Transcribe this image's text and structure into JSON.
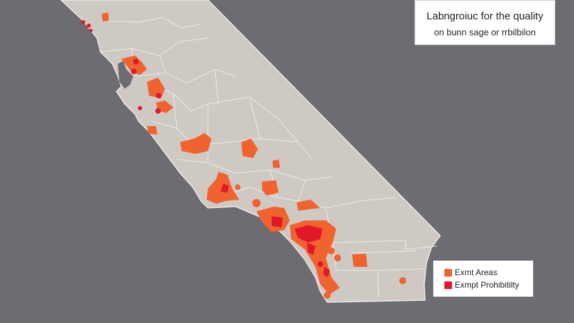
{
  "title": {
    "line1": "Labngroiuc for the quality",
    "line2": "on bunn sage or rrbilbilon"
  },
  "legend": {
    "items": [
      {
        "label": "Exmt Areas",
        "color": "#f0622e"
      },
      {
        "label": "Exmpt Prohibitilty",
        "color": "#e0182a"
      }
    ]
  },
  "colors": {
    "ocean": "#6c6c72",
    "land": "#cfc9c4",
    "borders": "#eeeae6"
  }
}
